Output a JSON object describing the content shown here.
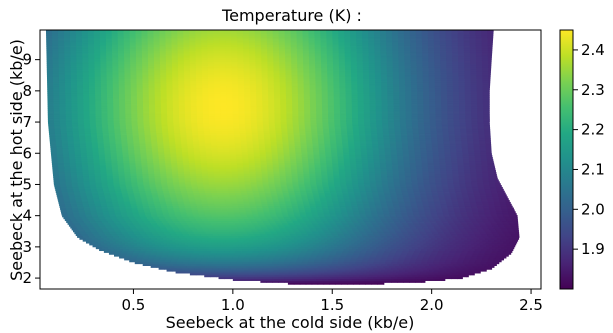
{
  "chart_data": {
    "type": "heatmap",
    "title": "Temperature (K) :",
    "xlabel": "Seebeck at the cold side (kb/e)",
    "ylabel": "Seebeck at the hot side (kb/e)",
    "xlim": [
      0.03,
      2.55
    ],
    "ylim": [
      1.65,
      9.95
    ],
    "x_ticks": [
      "0.5",
      "1.0",
      "1.5",
      "2.0",
      "2.5"
    ],
    "y_ticks": [
      "2",
      "3",
      "4",
      "5",
      "6",
      "7",
      "8",
      "9"
    ],
    "colormap": "viridis",
    "colorbar": {
      "range": [
        1.8,
        2.45
      ],
      "ticks": [
        "1.9",
        "2.0",
        "2.1",
        "2.2",
        "2.3",
        "2.4"
      ]
    },
    "domain_boundary": {
      "left_edge": [
        [
          0.06,
          9.95
        ],
        [
          0.07,
          7.0
        ],
        [
          0.1,
          5.0
        ],
        [
          0.14,
          4.0
        ],
        [
          0.22,
          3.3
        ],
        [
          0.33,
          2.9
        ],
        [
          0.5,
          2.5
        ],
        [
          0.7,
          2.2
        ],
        [
          1.0,
          1.95
        ],
        [
          1.3,
          1.82
        ],
        [
          1.55,
          1.8
        ]
      ],
      "right_edge": [
        [
          1.55,
          1.8
        ],
        [
          1.9,
          1.85
        ],
        [
          2.15,
          2.0
        ],
        [
          2.3,
          2.3
        ],
        [
          2.4,
          2.8
        ],
        [
          2.44,
          3.3
        ],
        [
          2.43,
          4.0
        ],
        [
          2.38,
          4.6
        ],
        [
          2.33,
          5.2
        ],
        [
          2.3,
          6.0
        ],
        [
          2.29,
          7.0
        ],
        [
          2.29,
          8.0
        ],
        [
          2.3,
          9.0
        ],
        [
          2.31,
          9.95
        ]
      ]
    },
    "peak": {
      "x": 0.95,
      "y": 7.5,
      "value": 2.45
    }
  }
}
